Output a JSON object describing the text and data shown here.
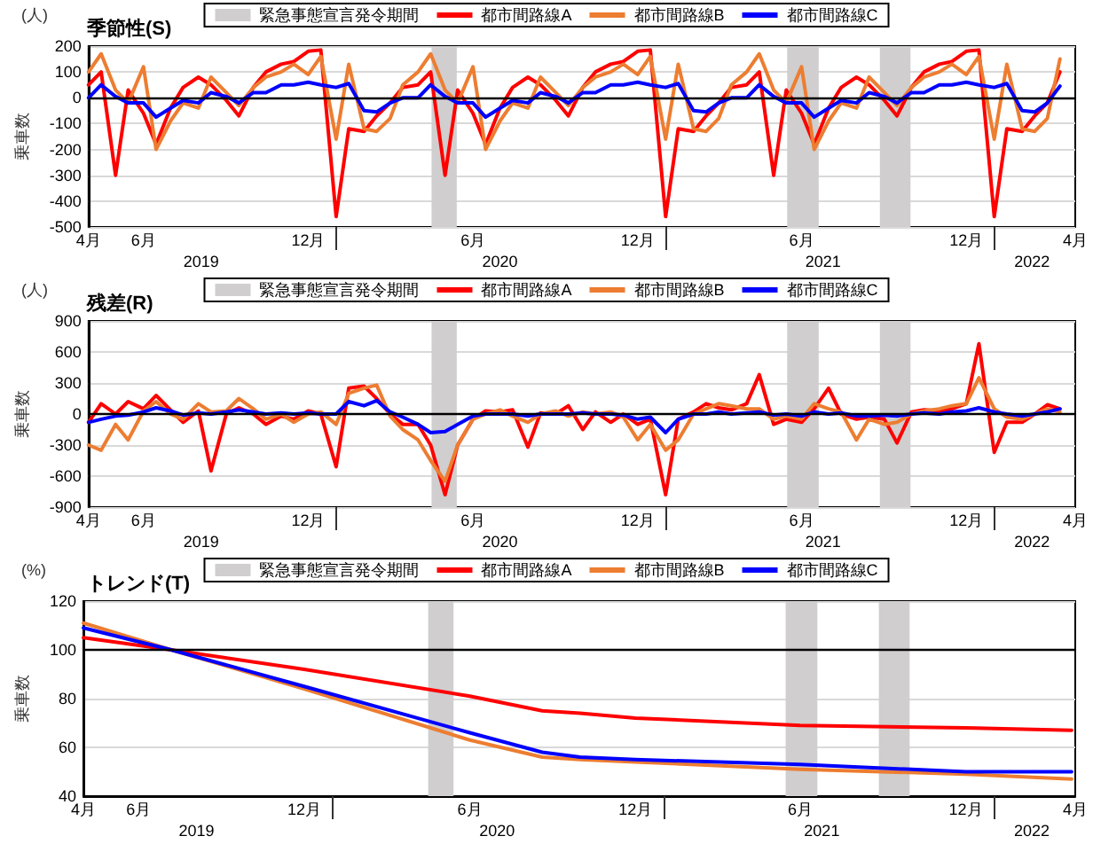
{
  "chart_data": [
    {
      "type": "line",
      "title": "季節性(S)",
      "ylabel": "乗車数",
      "annotations": [
        "(人)"
      ],
      "legend": "top",
      "grid": "y",
      "marker": "none",
      "x": [
        "2019-04-01",
        "2019-04-15",
        "2019-05-01",
        "2019-05-15",
        "2019-06-01",
        "2019-06-15",
        "2019-07-01",
        "2019-07-15",
        "2019-08-01",
        "2019-08-15",
        "2019-09-01",
        "2019-09-15",
        "2019-10-01",
        "2019-10-15",
        "2019-11-01",
        "2019-11-15",
        "2019-12-01",
        "2019-12-15",
        "2020-01-01",
        "2020-01-15",
        "2020-02-01",
        "2020-02-15",
        "2020-03-01",
        "2020-03-15",
        "2020-04-01",
        "2020-04-15",
        "2020-05-01",
        "2020-05-15",
        "2020-06-01",
        "2020-06-15",
        "2020-07-01",
        "2020-07-15",
        "2020-08-01",
        "2020-08-15",
        "2020-09-01",
        "2020-09-15",
        "2020-10-01",
        "2020-10-15",
        "2020-11-01",
        "2020-11-15",
        "2020-12-01",
        "2020-12-15",
        "2021-01-01",
        "2021-01-15",
        "2021-02-01",
        "2021-02-15",
        "2021-03-01",
        "2021-03-15",
        "2021-04-01",
        "2021-04-15",
        "2021-05-01",
        "2021-05-15",
        "2021-06-01",
        "2021-06-15",
        "2021-07-01",
        "2021-07-15",
        "2021-08-01",
        "2021-08-15",
        "2021-09-01",
        "2021-09-15",
        "2021-10-01",
        "2021-10-15",
        "2021-11-01",
        "2021-11-15",
        "2021-12-01",
        "2021-12-15",
        "2022-01-01",
        "2022-01-15",
        "2022-02-01",
        "2022-02-15",
        "2022-03-01",
        "2022-03-15"
      ],
      "series": [
        {
          "name": "都市間路線A",
          "color": "#ff0000",
          "values": [
            50,
            100,
            -300,
            30,
            -60,
            -180,
            -40,
            40,
            80,
            50,
            -10,
            -70,
            40,
            100,
            130,
            140,
            180,
            185,
            -460,
            -120,
            -130,
            -70,
            -20,
            40,
            50,
            100,
            -300,
            30,
            -60,
            -180,
            -40,
            40,
            80,
            50,
            -10,
            -70,
            40,
            100,
            130,
            140,
            180,
            185,
            -460,
            -120,
            -130,
            -70,
            -20,
            40,
            50,
            100,
            -300,
            30,
            -60,
            -180,
            -40,
            40,
            80,
            50,
            -10,
            -70,
            40,
            100,
            130,
            140,
            180,
            185,
            -460,
            -120,
            -130,
            -70,
            -20,
            100
          ]
        },
        {
          "name": "都市間路線B",
          "color": "#ed7d31",
          "values": [
            100,
            170,
            30,
            -20,
            120,
            -200,
            -90,
            -20,
            -40,
            80,
            20,
            -30,
            40,
            80,
            100,
            130,
            90,
            160,
            -160,
            130,
            -120,
            -130,
            -80,
            50,
            100,
            170,
            30,
            -20,
            120,
            -200,
            -90,
            -20,
            -40,
            80,
            20,
            -30,
            40,
            80,
            100,
            130,
            90,
            160,
            -160,
            130,
            -120,
            -130,
            -80,
            50,
            100,
            170,
            30,
            -20,
            120,
            -200,
            -90,
            -20,
            -40,
            80,
            20,
            -30,
            40,
            80,
            100,
            130,
            90,
            160,
            -160,
            130,
            -120,
            -130,
            -80,
            150
          ]
        },
        {
          "name": "都市間路線C",
          "color": "#0000ff",
          "values": [
            0,
            50,
            5,
            -20,
            -20,
            -75,
            -40,
            -10,
            -20,
            20,
            5,
            -20,
            20,
            20,
            50,
            50,
            60,
            50,
            40,
            55,
            -50,
            -55,
            -20,
            0,
            0,
            50,
            5,
            -20,
            -20,
            -75,
            -40,
            -10,
            -20,
            20,
            5,
            -20,
            20,
            20,
            50,
            50,
            60,
            50,
            40,
            55,
            -50,
            -55,
            -20,
            0,
            0,
            50,
            5,
            -20,
            -20,
            -75,
            -40,
            -10,
            -20,
            20,
            5,
            -20,
            20,
            20,
            50,
            50,
            60,
            50,
            40,
            55,
            -50,
            -55,
            -20,
            45
          ]
        }
      ],
      "xlim": [
        "2019-04-01",
        "2022-04-01"
      ],
      "xticks": [
        {
          "value": "2019-04-01",
          "label": "4月"
        },
        {
          "value": "2019-06-01",
          "label": "6月"
        },
        {
          "value": "2019-12-01",
          "label": "12月"
        },
        {
          "value": "2020-06-01",
          "label": "6月"
        },
        {
          "value": "2020-12-01",
          "label": "12月"
        },
        {
          "value": "2021-06-01",
          "label": "6月"
        },
        {
          "value": "2021-12-01",
          "label": "12月"
        },
        {
          "value": "2022-04-01",
          "label": "4月"
        }
      ],
      "x2lim": [
        "2019-04-01",
        "2022-04-01"
      ],
      "x2ticks": [
        {
          "value": "2019-08-04",
          "label": "2019"
        },
        {
          "value": "2020-01-01",
          "label": null
        },
        {
          "value": "2020-07-01",
          "label": "2020"
        },
        {
          "value": "2021-01-01",
          "label": null
        },
        {
          "value": "2021-06-25",
          "label": "2021"
        },
        {
          "value": "2022-01-01",
          "label": null
        },
        {
          "value": "2022-02-12",
          "label": "2022"
        }
      ],
      "ylim": [
        -500,
        200
      ],
      "yticks": [
        -500,
        -400,
        -300,
        -200,
        -100,
        0,
        100,
        200
      ],
      "bands": [
        {
          "axis": "x",
          "from": "2020-04-16",
          "to": "2020-05-14",
          "label": "緊急事態宣言発令期間",
          "color": "#d0cece"
        },
        {
          "axis": "x",
          "from": "2021-05-16",
          "to": "2021-06-20",
          "color": "#d0cece"
        },
        {
          "axis": "x",
          "from": "2021-08-27",
          "to": "2021-09-30",
          "color": "#d0cece"
        }
      ],
      "ref_lines": [
        {
          "axis": "y",
          "value": 0,
          "color": "#000000"
        }
      ]
    },
    {
      "type": "line",
      "title": "残差(R)",
      "ylabel": "乗車数",
      "annotations": [
        "(人)"
      ],
      "legend": "top",
      "grid": "y",
      "marker": "none",
      "x": [
        "2019-04-01",
        "2019-04-15",
        "2019-05-01",
        "2019-05-15",
        "2019-06-01",
        "2019-06-15",
        "2019-07-01",
        "2019-07-15",
        "2019-08-01",
        "2019-08-15",
        "2019-09-01",
        "2019-09-15",
        "2019-10-01",
        "2019-10-15",
        "2019-11-01",
        "2019-11-15",
        "2019-12-01",
        "2019-12-15",
        "2020-01-01",
        "2020-01-15",
        "2020-02-01",
        "2020-02-15",
        "2020-03-01",
        "2020-03-15",
        "2020-04-01",
        "2020-04-15",
        "2020-05-01",
        "2020-05-15",
        "2020-06-01",
        "2020-06-15",
        "2020-07-01",
        "2020-07-15",
        "2020-08-01",
        "2020-08-15",
        "2020-09-01",
        "2020-09-15",
        "2020-10-01",
        "2020-10-15",
        "2020-11-01",
        "2020-11-15",
        "2020-12-01",
        "2020-12-15",
        "2021-01-01",
        "2021-01-15",
        "2021-02-01",
        "2021-02-15",
        "2021-03-01",
        "2021-03-15",
        "2021-04-01",
        "2021-04-15",
        "2021-05-01",
        "2021-05-15",
        "2021-06-01",
        "2021-06-15",
        "2021-07-01",
        "2021-07-15",
        "2021-08-01",
        "2021-08-15",
        "2021-09-01",
        "2021-09-15",
        "2021-10-01",
        "2021-10-15",
        "2021-11-01",
        "2021-11-15",
        "2021-12-01",
        "2021-12-15",
        "2022-01-01",
        "2022-01-15",
        "2022-02-01",
        "2022-02-15",
        "2022-03-01",
        "2022-03-15"
      ],
      "series": [
        {
          "name": "都市間路線A",
          "color": "#ff0000",
          "values": [
            -80,
            100,
            0,
            120,
            50,
            180,
            40,
            -80,
            30,
            -550,
            0,
            60,
            0,
            -100,
            -20,
            -50,
            30,
            0,
            -510,
            250,
            270,
            150,
            0,
            -100,
            -100,
            -300,
            -780,
            -300,
            -50,
            30,
            20,
            40,
            -320,
            10,
            0,
            80,
            -150,
            20,
            -80,
            0,
            -100,
            -50,
            -780,
            -50,
            20,
            100,
            60,
            40,
            100,
            380,
            -100,
            -50,
            -80,
            50,
            250,
            0,
            -50,
            -30,
            -50,
            -280,
            20,
            40,
            30,
            50,
            100,
            680,
            -370,
            -80,
            -80,
            0,
            90,
            50
          ]
        },
        {
          "name": "都市間路線B",
          "color": "#ed7d31",
          "values": [
            -300,
            -350,
            -100,
            -250,
            30,
            120,
            0,
            -50,
            100,
            20,
            30,
            150,
            50,
            -50,
            0,
            -80,
            0,
            20,
            -100,
            200,
            250,
            280,
            -20,
            -150,
            -250,
            -450,
            -650,
            -300,
            -50,
            0,
            40,
            -20,
            -80,
            0,
            30,
            -20,
            20,
            0,
            20,
            -30,
            -250,
            -100,
            -350,
            -250,
            0,
            50,
            100,
            80,
            50,
            50,
            -50,
            -20,
            -50,
            100,
            50,
            20,
            -250,
            -50,
            -100,
            -80,
            0,
            30,
            50,
            80,
            100,
            350,
            50,
            -30,
            -50,
            0,
            50,
            20
          ]
        },
        {
          "name": "都市間路線C",
          "color": "#0000ff",
          "values": [
            -80,
            -50,
            -20,
            -10,
            20,
            60,
            30,
            -10,
            10,
            0,
            20,
            40,
            20,
            0,
            10,
            0,
            10,
            0,
            0,
            120,
            80,
            130,
            20,
            -30,
            -100,
            -180,
            -170,
            -100,
            -20,
            0,
            0,
            0,
            -20,
            0,
            0,
            0,
            10,
            0,
            0,
            -10,
            -50,
            -30,
            -180,
            -50,
            0,
            0,
            20,
            0,
            10,
            20,
            -10,
            0,
            -20,
            20,
            0,
            10,
            -20,
            -20,
            -10,
            -20,
            0,
            10,
            0,
            20,
            30,
            60,
            20,
            0,
            -20,
            0,
            20,
            50
          ]
        }
      ],
      "xlim": [
        "2019-04-01",
        "2022-04-01"
      ],
      "xticks": [
        {
          "value": "2019-04-01",
          "label": "4月"
        },
        {
          "value": "2019-06-01",
          "label": "6月"
        },
        {
          "value": "2019-12-01",
          "label": "12月"
        },
        {
          "value": "2020-06-01",
          "label": "6月"
        },
        {
          "value": "2020-12-01",
          "label": "12月"
        },
        {
          "value": "2021-06-01",
          "label": "6月"
        },
        {
          "value": "2021-12-01",
          "label": "12月"
        },
        {
          "value": "2022-04-01",
          "label": "4月"
        }
      ],
      "x2lim": [
        "2019-04-01",
        "2022-04-01"
      ],
      "x2ticks": [
        {
          "value": "2019-08-04",
          "label": "2019"
        },
        {
          "value": "2020-01-01",
          "label": null
        },
        {
          "value": "2020-07-01",
          "label": "2020"
        },
        {
          "value": "2021-01-01",
          "label": null
        },
        {
          "value": "2021-06-25",
          "label": "2021"
        },
        {
          "value": "2022-01-01",
          "label": null
        },
        {
          "value": "2022-02-12",
          "label": "2022"
        }
      ],
      "ylim": [
        -900,
        900
      ],
      "yticks": [
        -900,
        -600,
        -300,
        0,
        300,
        600,
        900
      ],
      "bands": [
        {
          "axis": "x",
          "from": "2020-04-16",
          "to": "2020-05-14",
          "label": "緊急事態宣言発令期間",
          "color": "#d0cece"
        },
        {
          "axis": "x",
          "from": "2021-05-16",
          "to": "2021-06-20",
          "color": "#d0cece"
        },
        {
          "axis": "x",
          "from": "2021-08-27",
          "to": "2021-09-30",
          "color": "#d0cece"
        }
      ],
      "ref_lines": [
        {
          "axis": "y",
          "value": 0,
          "color": "#000000"
        }
      ]
    },
    {
      "type": "line",
      "title": "トレンド(T)",
      "ylabel": "乗車数",
      "annotations": [
        "(%)"
      ],
      "legend": "top",
      "grid": "y",
      "marker": "none",
      "x": [
        "2019-04-01",
        "2019-07-07",
        "2019-12-01",
        "2020-06-01",
        "2020-08-20",
        "2020-10-01",
        "2020-12-01",
        "2021-06-01",
        "2021-12-01",
        "2022-03-28"
      ],
      "series": [
        {
          "name": "都市間路線A",
          "color": "#ff0000",
          "values": [
            105,
            100,
            92,
            81,
            75,
            74,
            72,
            69,
            68,
            67
          ]
        },
        {
          "name": "都市間路線B",
          "color": "#ed7d31",
          "values": [
            111,
            100,
            84,
            63,
            56,
            55,
            54,
            51,
            49,
            47
          ]
        },
        {
          "name": "都市間路線C",
          "color": "#0000ff",
          "values": [
            109,
            100,
            85,
            66,
            58,
            56,
            55,
            53,
            50,
            50
          ]
        }
      ],
      "xlim": [
        "2019-04-01",
        "2022-04-01"
      ],
      "xticks": [
        {
          "value": "2019-04-01",
          "label": "4月"
        },
        {
          "value": "2019-06-01",
          "label": "6月"
        },
        {
          "value": "2019-12-01",
          "label": "12月"
        },
        {
          "value": "2020-06-01",
          "label": "6月"
        },
        {
          "value": "2020-12-01",
          "label": "12月"
        },
        {
          "value": "2021-06-01",
          "label": "6月"
        },
        {
          "value": "2021-12-01",
          "label": "12月"
        },
        {
          "value": "2022-04-01",
          "label": "4月"
        }
      ],
      "x2lim": [
        "2019-04-01",
        "2022-04-01"
      ],
      "x2ticks": [
        {
          "value": "2019-08-04",
          "label": "2019"
        },
        {
          "value": "2020-01-01",
          "label": null
        },
        {
          "value": "2020-07-01",
          "label": "2020"
        },
        {
          "value": "2021-01-01",
          "label": null
        },
        {
          "value": "2021-06-25",
          "label": "2021"
        },
        {
          "value": "2022-01-01",
          "label": null
        },
        {
          "value": "2022-02-12",
          "label": "2022"
        }
      ],
      "ylim": [
        40,
        120
      ],
      "yticks": [
        40,
        60,
        80,
        100,
        120
      ],
      "bands": [
        {
          "axis": "x",
          "from": "2020-04-16",
          "to": "2020-05-14",
          "label": "緊急事態宣言発令期間",
          "color": "#d0cece"
        },
        {
          "axis": "x",
          "from": "2021-05-16",
          "to": "2021-06-20",
          "color": "#d0cece"
        },
        {
          "axis": "x",
          "from": "2021-08-27",
          "to": "2021-09-30",
          "color": "#d0cece"
        }
      ],
      "ref_lines": [
        {
          "axis": "y",
          "value": 100,
          "color": "#000000"
        }
      ]
    }
  ]
}
